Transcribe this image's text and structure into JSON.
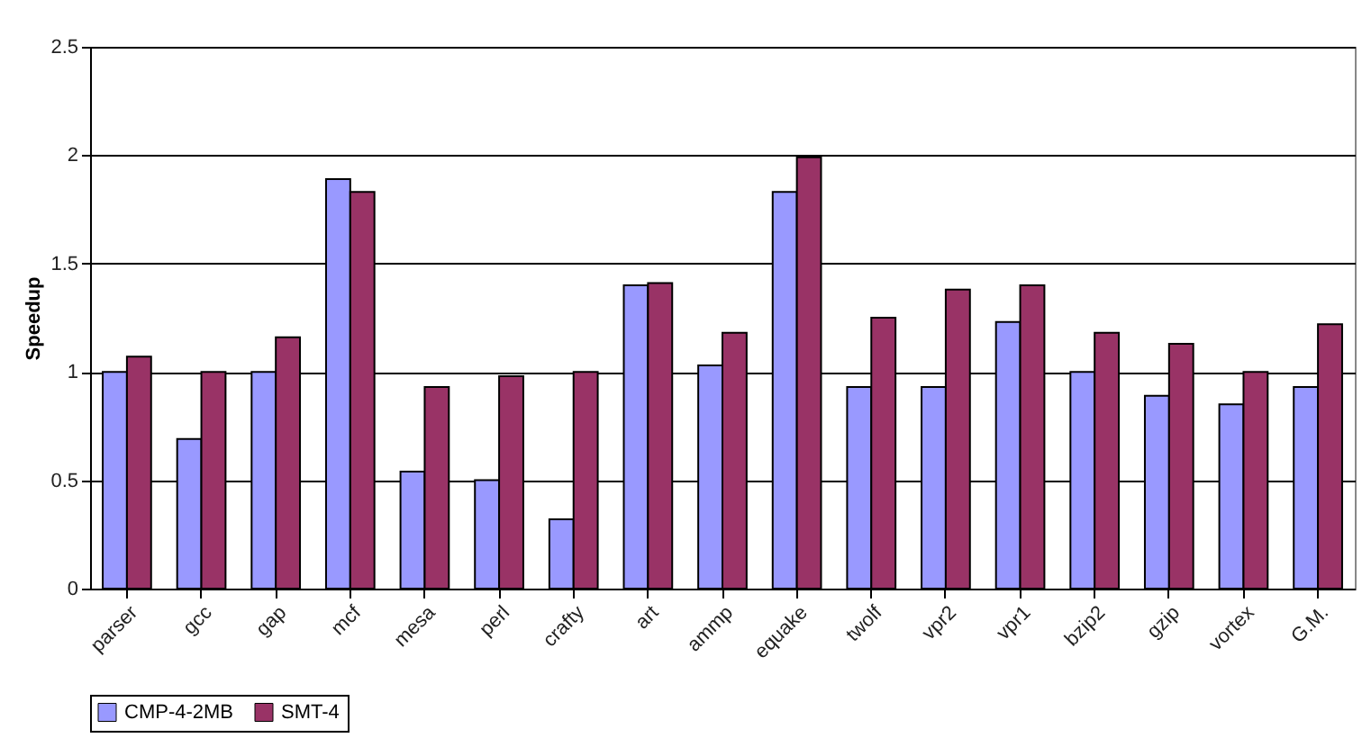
{
  "chart_data": {
    "type": "bar",
    "ylabel": "Speedup",
    "categories": [
      "parser",
      "gcc",
      "gap",
      "mcf",
      "mesa",
      "perl",
      "crafty",
      "art",
      "ammp",
      "equake",
      "twolf",
      "vpr2",
      "vpr1",
      "bzip2",
      "gzip",
      "vortex",
      "G.M."
    ],
    "series": [
      {
        "name": "CMP-4-2MB",
        "color": "#9999ff",
        "values": [
          1.0,
          0.69,
          1.0,
          1.89,
          0.54,
          0.5,
          0.32,
          1.4,
          1.03,
          1.83,
          0.93,
          0.93,
          1.23,
          1.0,
          0.89,
          0.85,
          0.93
        ]
      },
      {
        "name": "SMT-4",
        "color": "#993366",
        "values": [
          1.07,
          1.0,
          1.16,
          1.83,
          0.93,
          0.98,
          1.0,
          1.41,
          1.18,
          1.99,
          1.25,
          1.38,
          1.4,
          1.18,
          1.13,
          1.0,
          1.22
        ]
      }
    ],
    "ylim": [
      0,
      2.5
    ],
    "yticks": [
      0,
      0.5,
      1,
      1.5,
      2,
      2.5
    ],
    "grid": "y",
    "legend": "bottom"
  }
}
